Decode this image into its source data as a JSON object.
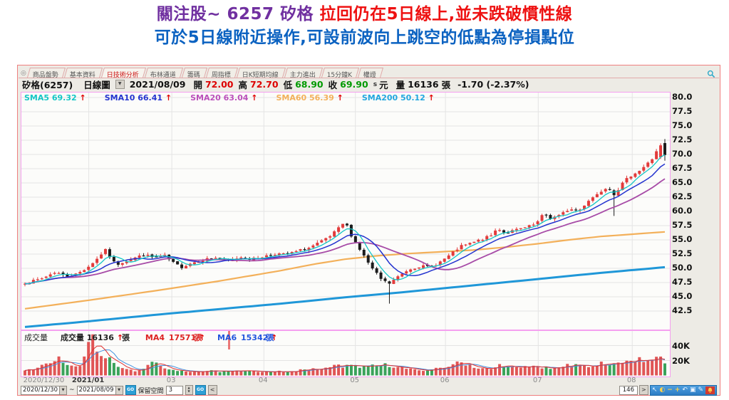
{
  "title": {
    "line1_purple": "關注股~ 6257  矽格 ",
    "line1_red": "拉回仍在5日線上,並未跌破慣性線",
    "line2_blue": "可於5日線附近操作,可設前波向上跳空的低點為停損點位"
  },
  "window": {
    "tabs": [
      {
        "label": "商品盤勢",
        "active": false
      },
      {
        "label": "基本資料",
        "active": false
      },
      {
        "label": "日技術分析",
        "active": true
      },
      {
        "label": "布林通道",
        "active": false
      },
      {
        "label": "籌碼",
        "active": false
      },
      {
        "label": "周指標",
        "active": false
      },
      {
        "label": "日K短期均線",
        "active": false
      },
      {
        "label": "主力進出",
        "active": false
      },
      {
        "label": "15分鐘K",
        "active": false
      },
      {
        "label": "權證",
        "active": false
      }
    ],
    "header": {
      "stock": "矽格(6257)",
      "period": "日線圖",
      "date": "2021/08/09",
      "o_label": "開",
      "o": "72.00",
      "h_label": "高",
      "h": "72.70",
      "l_label": "低",
      "l": "68.90",
      "c_label": "收",
      "c": "69.90",
      "s": "s",
      "unit": "元",
      "v_label": "量",
      "v": "16136",
      "v_unit": "張",
      "change": "-1.70 (-2.37%)"
    },
    "sma_legend": [
      {
        "label": "SMA5",
        "value": "69.32",
        "color": "#14c6c6"
      },
      {
        "label": "SMA10",
        "value": "66.41",
        "color": "#2433cf"
      },
      {
        "label": "SMA20",
        "value": "63.04",
        "color": "#bb4fbb"
      },
      {
        "label": "SMA60",
        "value": "56.39",
        "color": "#f3b05a"
      },
      {
        "label": "SMA200",
        "value": "50.12",
        "color": "#22a6df"
      }
    ],
    "up_arrow": "↑",
    "volume_legend": {
      "title": "成交量",
      "label": "成交量",
      "value": "16136",
      "unit": "張",
      "ma4_label": "MA4",
      "ma4": "17571",
      "ma6_label": "MA6",
      "ma6": "15342"
    },
    "controls": {
      "date_from": "2020/12/30",
      "tilde": "~",
      "date_to": "2021/08/09",
      "go": "GO",
      "keep_label": "保留空間",
      "keep_value": "3",
      "back": "<",
      "page": "146",
      "fwd": ">"
    }
  },
  "chart_data": {
    "type": "candlestick+volume",
    "symbol": "矽格(6257)",
    "period": "日線圖",
    "date_range": [
      "2020/12/30",
      "2021/08/09"
    ],
    "last_bar": {
      "date": "2021/08/09",
      "open": 72.0,
      "high": 72.7,
      "low": 68.9,
      "close": 69.9,
      "volume": 16136,
      "change": -1.7,
      "change_pct": -2.37,
      "prev_close": 71.6
    },
    "sma_values": {
      "SMA5": 69.32,
      "SMA10": 66.41,
      "SMA20": 63.04,
      "SMA60": 56.39,
      "SMA200": 50.12
    },
    "volume_ma": {
      "MA4": 17571,
      "MA6": 15342
    },
    "y_axis_ticks": [
      "80.0",
      "77.5",
      "75.0",
      "72.5",
      "70.0",
      "67.5",
      "65.0",
      "62.5",
      "60.0",
      "57.5",
      "55.0",
      "52.5",
      "50.0",
      "47.5",
      "45.0",
      "42.5"
    ],
    "volume_axis_ticks": [
      {
        "text": "40K",
        "value": 40000
      },
      {
        "text": "20K",
        "value": 20000
      }
    ],
    "x_labels": [
      {
        "text": "2020/12/30",
        "f": 0.004,
        "bold": false,
        "grid": false,
        "first": true
      },
      {
        "text": "2021/01",
        "f": 0.104,
        "bold": true,
        "grid": true,
        "first": false
      },
      {
        "text": "03",
        "f": 0.232,
        "bold": false,
        "grid": true,
        "first": false
      },
      {
        "text": "04",
        "f": 0.374,
        "bold": false,
        "grid": true,
        "first": false
      },
      {
        "text": "05",
        "f": 0.515,
        "bold": false,
        "grid": true,
        "first": false
      },
      {
        "text": "06",
        "f": 0.654,
        "bold": false,
        "grid": true,
        "first": false
      },
      {
        "text": "07",
        "f": 0.797,
        "bold": false,
        "grid": true,
        "first": false
      },
      {
        "text": "08",
        "f": 0.942,
        "bold": false,
        "grid": true,
        "first": false
      }
    ],
    "candle_count": 152,
    "price_anchors": [
      [
        0.0,
        47.3
      ],
      [
        0.026,
        48.2
      ],
      [
        0.048,
        49.4
      ],
      [
        0.064,
        48.6
      ],
      [
        0.081,
        49.0
      ],
      [
        0.098,
        50.2
      ],
      [
        0.114,
        51.8
      ],
      [
        0.125,
        53.3
      ],
      [
        0.133,
        52.0
      ],
      [
        0.142,
        50.6
      ],
      [
        0.155,
        51.2
      ],
      [
        0.17,
        51.8
      ],
      [
        0.186,
        52.4
      ],
      [
        0.2,
        51.9
      ],
      [
        0.218,
        52.2
      ],
      [
        0.231,
        51.0
      ],
      [
        0.244,
        50.2
      ],
      [
        0.259,
        50.9
      ],
      [
        0.277,
        51.5
      ],
      [
        0.297,
        51.9
      ],
      [
        0.317,
        51.2
      ],
      [
        0.336,
        52.0
      ],
      [
        0.355,
        51.6
      ],
      [
        0.373,
        52.1
      ],
      [
        0.392,
        52.6
      ],
      [
        0.408,
        52.4
      ],
      [
        0.425,
        53.0
      ],
      [
        0.444,
        53.6
      ],
      [
        0.462,
        54.6
      ],
      [
        0.477,
        55.6
      ],
      [
        0.492,
        57.2
      ],
      [
        0.5,
        58.2
      ],
      [
        0.51,
        55.8
      ],
      [
        0.525,
        53.0
      ],
      [
        0.542,
        50.0
      ],
      [
        0.558,
        47.9
      ],
      [
        0.569,
        47.3
      ],
      [
        0.584,
        48.6
      ],
      [
        0.599,
        49.8
      ],
      [
        0.617,
        50.4
      ],
      [
        0.633,
        50.2
      ],
      [
        0.647,
        51.0
      ],
      [
        0.664,
        52.3
      ],
      [
        0.68,
        53.8
      ],
      [
        0.697,
        54.4
      ],
      [
        0.714,
        55.1
      ],
      [
        0.728,
        55.7
      ],
      [
        0.739,
        57.1
      ],
      [
        0.75,
        56.2
      ],
      [
        0.766,
        56.7
      ],
      [
        0.784,
        57.2
      ],
      [
        0.799,
        57.8
      ],
      [
        0.811,
        59.6
      ],
      [
        0.821,
        58.8
      ],
      [
        0.836,
        59.3
      ],
      [
        0.85,
        60.4
      ],
      [
        0.866,
        60.1
      ],
      [
        0.88,
        61.9
      ],
      [
        0.895,
        63.1
      ],
      [
        0.91,
        64.4
      ],
      [
        0.921,
        63.0
      ],
      [
        0.936,
        65.2
      ],
      [
        0.95,
        66.6
      ],
      [
        0.961,
        67.2
      ],
      [
        0.972,
        68.3
      ],
      [
        0.981,
        69.3
      ],
      [
        0.991,
        71.6
      ],
      [
        1.0,
        69.9
      ]
    ],
    "wick_events": [
      {
        "f": 0.569,
        "low": 43.8
      },
      {
        "f": 0.921,
        "low": 59.2
      }
    ],
    "sma60_anchors": [
      [
        0,
        42.9
      ],
      [
        0.1,
        44.4
      ],
      [
        0.2,
        46.0
      ],
      [
        0.3,
        47.7
      ],
      [
        0.4,
        49.6
      ],
      [
        0.45,
        50.7
      ],
      [
        0.5,
        51.6
      ],
      [
        0.55,
        52.2
      ],
      [
        0.6,
        52.6
      ],
      [
        0.65,
        52.9
      ],
      [
        0.7,
        53.2
      ],
      [
        0.75,
        53.7
      ],
      [
        0.8,
        54.3
      ],
      [
        0.85,
        55.0
      ],
      [
        0.9,
        55.6
      ],
      [
        0.95,
        56.0
      ],
      [
        1,
        56.4
      ]
    ],
    "sma200_anchors": [
      [
        0,
        39.7
      ],
      [
        0.1,
        40.7
      ],
      [
        0.2,
        41.8
      ],
      [
        0.3,
        42.8
      ],
      [
        0.4,
        43.8
      ],
      [
        0.5,
        44.9
      ],
      [
        0.6,
        45.9
      ],
      [
        0.7,
        47.0
      ],
      [
        0.8,
        48.1
      ],
      [
        0.9,
        49.2
      ],
      [
        1,
        50.2
      ]
    ],
    "volume_anchors_k": [
      [
        0,
        6
      ],
      [
        0.02,
        9
      ],
      [
        0.04,
        20
      ],
      [
        0.055,
        23
      ],
      [
        0.07,
        12
      ],
      [
        0.085,
        11
      ],
      [
        0.098,
        35
      ],
      [
        0.103,
        55
      ],
      [
        0.112,
        30
      ],
      [
        0.125,
        27
      ],
      [
        0.14,
        14
      ],
      [
        0.155,
        9
      ],
      [
        0.17,
        6
      ],
      [
        0.19,
        11
      ],
      [
        0.2,
        17
      ],
      [
        0.215,
        10
      ],
      [
        0.23,
        8
      ],
      [
        0.25,
        6
      ],
      [
        0.27,
        5
      ],
      [
        0.29,
        6
      ],
      [
        0.31,
        5
      ],
      [
        0.34,
        6
      ],
      [
        0.36,
        5
      ],
      [
        0.39,
        6
      ],
      [
        0.41,
        5
      ],
      [
        0.43,
        7
      ],
      [
        0.45,
        8
      ],
      [
        0.47,
        10
      ],
      [
        0.49,
        13
      ],
      [
        0.51,
        12
      ],
      [
        0.53,
        13
      ],
      [
        0.555,
        16
      ],
      [
        0.57,
        13
      ],
      [
        0.59,
        10
      ],
      [
        0.61,
        7
      ],
      [
        0.63,
        8
      ],
      [
        0.65,
        9
      ],
      [
        0.665,
        12
      ],
      [
        0.68,
        19
      ],
      [
        0.7,
        12
      ],
      [
        0.72,
        9
      ],
      [
        0.74,
        13
      ],
      [
        0.76,
        10
      ],
      [
        0.78,
        11
      ],
      [
        0.8,
        12
      ],
      [
        0.82,
        10
      ],
      [
        0.84,
        13
      ],
      [
        0.86,
        15
      ],
      [
        0.88,
        13
      ],
      [
        0.9,
        17
      ],
      [
        0.92,
        15
      ],
      [
        0.94,
        20
      ],
      [
        0.96,
        21
      ],
      [
        0.975,
        18
      ],
      [
        0.99,
        25
      ],
      [
        1,
        16.136
      ]
    ],
    "colors": {
      "up": "#e23b3b",
      "down": "#1c1c1c",
      "vol_up": "#e05555",
      "vol_down": "#3aa25a",
      "vol_ma4": "#e03030",
      "vol_ma6": "#4090e0",
      "grid": "#e4e4e4",
      "sma5": "#14c6c6",
      "sma10": "#2433cf",
      "sma20": "#a74ba7",
      "sma60": "#f3b05a",
      "sma200": "#1f97d8"
    }
  }
}
